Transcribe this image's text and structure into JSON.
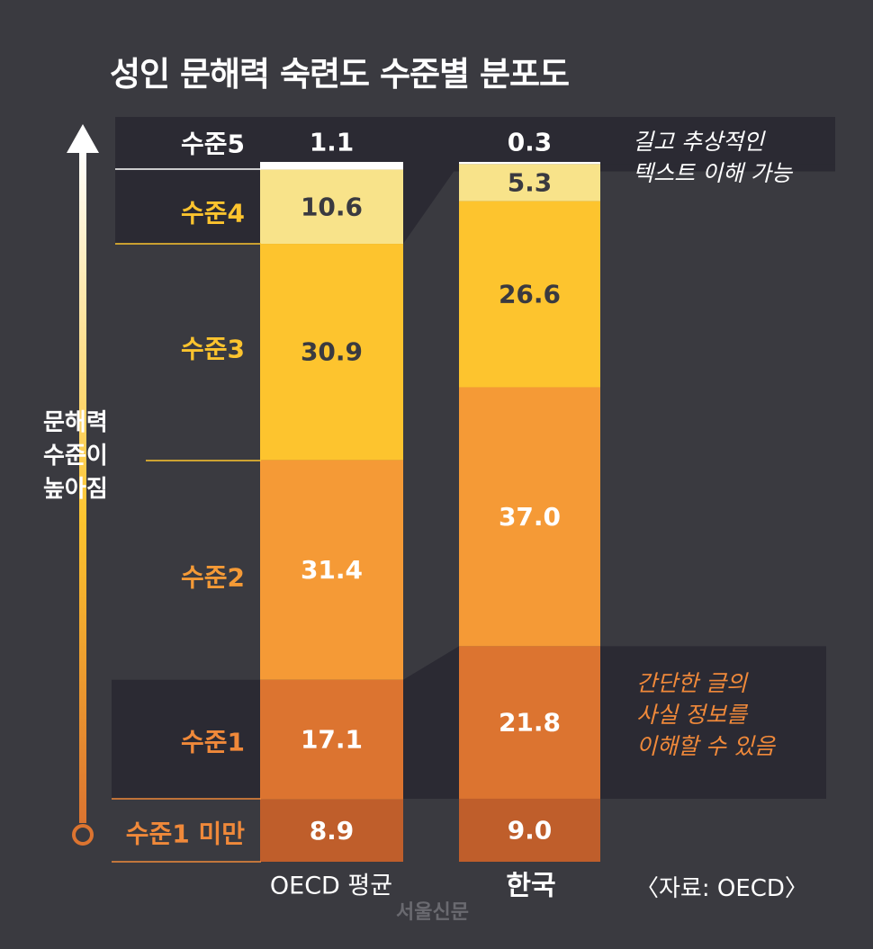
{
  "title": "성인 문해력 숙련도 수준별 분포도",
  "y_axis_label": [
    "문해력",
    "수준이",
    "높아짐"
  ],
  "notes": {
    "top": [
      "길고 추상적인",
      "텍스트 이해 가능"
    ],
    "bottom": [
      "간단한 글의",
      "사실 정보를",
      "이해할 수 있음"
    ]
  },
  "source": "〈자료: OECD〉",
  "watermark": "서울신문",
  "colors": {
    "background": "#3a3a40",
    "dark_panel": "#2b2a33",
    "level5": "#ffffff",
    "level4": "#f8e38a",
    "level3": "#fdc42e",
    "level2": "#f59a36",
    "level1": "#dc7430",
    "below1": "#bf5e2b"
  },
  "chart_data": {
    "type": "stacked-bar",
    "title": "성인 문해력 숙련도 수준별 분포도",
    "unit": "%",
    "categories": [
      "OECD 평균",
      "한국"
    ],
    "series": [
      {
        "name": "수준1 미만",
        "values": [
          8.9,
          9.0
        ]
      },
      {
        "name": "수준1",
        "values": [
          17.1,
          21.8
        ]
      },
      {
        "name": "수준2",
        "values": [
          31.4,
          37.0
        ]
      },
      {
        "name": "수준3",
        "values": [
          30.9,
          26.6
        ]
      },
      {
        "name": "수준4",
        "values": [
          10.6,
          5.3
        ]
      },
      {
        "name": "수준5",
        "values": [
          1.1,
          0.3
        ]
      }
    ],
    "value_labels": [
      [
        "8.9",
        "17.1",
        "31.4",
        "30.9",
        "10.6",
        "1.1"
      ],
      [
        "9.0",
        "21.8",
        "37.0",
        "26.6",
        "5.3",
        "0.3"
      ]
    ]
  }
}
